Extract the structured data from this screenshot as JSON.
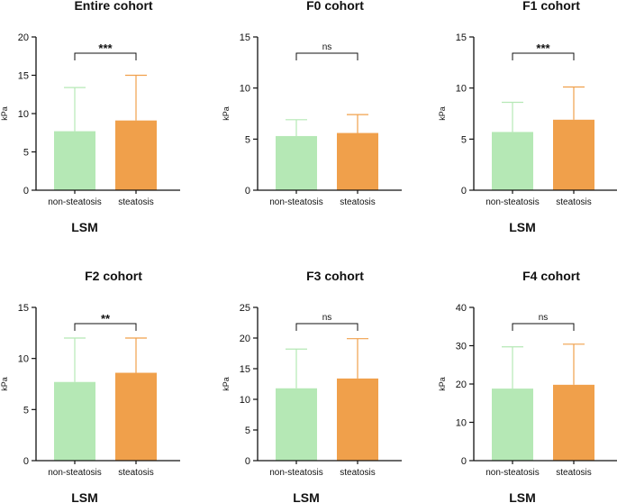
{
  "colors": {
    "non_steatosis_fill": "#b5e8b5",
    "non_steatosis_error": "#b5e8b5",
    "steatosis_fill": "#f0a04b",
    "steatosis_error": "#f0a04b",
    "axis": "#111111"
  },
  "chart_data": [
    {
      "type": "bar",
      "title": "Entire cohort",
      "group_label": "LSM",
      "ylabel": "kPa",
      "categories": [
        "non-steatosis",
        "steatosis"
      ],
      "values": [
        7.7,
        9.1
      ],
      "error_upper": [
        13.4,
        15.0
      ],
      "ylim": [
        0,
        20
      ],
      "yticks": [
        "0",
        "5",
        "10",
        "15",
        "20"
      ],
      "significance": "***"
    },
    {
      "type": "bar",
      "title": "F0 cohort",
      "group_label": "",
      "ylabel": "kPa",
      "categories": [
        "non-steatosis",
        "steatosis"
      ],
      "values": [
        5.3,
        5.6
      ],
      "error_upper": [
        6.9,
        7.4
      ],
      "ylim": [
        0,
        15
      ],
      "yticks": [
        "0",
        "5",
        "10",
        "15"
      ],
      "significance": "ns"
    },
    {
      "type": "bar",
      "title": "F1 cohort",
      "group_label": "LSM",
      "ylabel": "kPa",
      "categories": [
        "non-steatosis",
        "steatosis"
      ],
      "values": [
        5.7,
        6.9
      ],
      "error_upper": [
        8.6,
        10.1
      ],
      "ylim": [
        0,
        15
      ],
      "yticks": [
        "0",
        "5",
        "10",
        "15"
      ],
      "significance": "***"
    },
    {
      "type": "bar",
      "title": "F2 cohort",
      "group_label": "LSM",
      "ylabel": "kPa",
      "categories": [
        "non-steatosis",
        "steatosis"
      ],
      "values": [
        7.7,
        8.6
      ],
      "error_upper": [
        12.0,
        12.0
      ],
      "ylim": [
        0,
        15
      ],
      "yticks": [
        "0",
        "5",
        "10",
        "15"
      ],
      "significance": "**"
    },
    {
      "type": "bar",
      "title": "F3 cohort",
      "group_label": "LSM",
      "ylabel": "kPa",
      "categories": [
        "non-steatosis",
        "steatosis"
      ],
      "values": [
        11.8,
        13.4
      ],
      "error_upper": [
        18.2,
        19.9
      ],
      "ylim": [
        0,
        25
      ],
      "yticks": [
        "0",
        "5",
        "10",
        "15",
        "20",
        "25"
      ],
      "significance": "ns"
    },
    {
      "type": "bar",
      "title": "F4 cohort",
      "group_label": "LSM",
      "ylabel": "kPa",
      "categories": [
        "non-steatosis",
        "steatosis"
      ],
      "values": [
        18.8,
        19.8
      ],
      "error_upper": [
        29.7,
        30.4
      ],
      "ylim": [
        0,
        40
      ],
      "yticks": [
        "0",
        "10",
        "20",
        "30",
        "40"
      ],
      "significance": "ns"
    }
  ]
}
